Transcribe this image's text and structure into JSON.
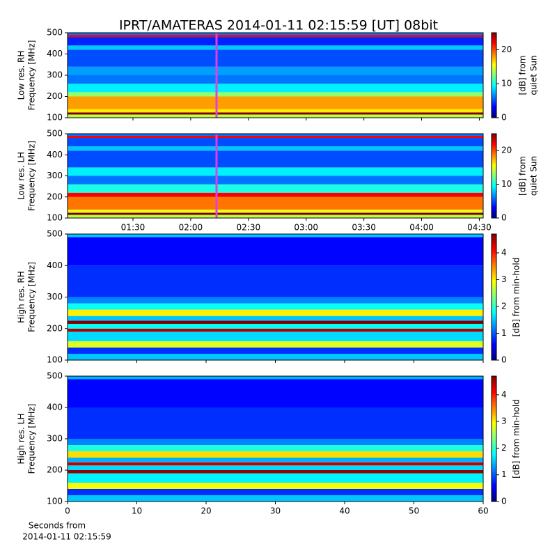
{
  "chart_data": [
    {
      "type": "heatmap",
      "title": "IPRT/AMATERAS 2014-01-11 02:15:59 [UT]   08bit",
      "ylabel": [
        "Low res. RH",
        "Frequency [MHz]"
      ],
      "colorbar_label": [
        "[dB] from",
        "quiet Sun"
      ],
      "ylim": [
        100,
        500
      ],
      "yticks": [
        100,
        200,
        300,
        400,
        500
      ],
      "y_edges": [
        100,
        115,
        125,
        140,
        200,
        220,
        260,
        300,
        340,
        420,
        440,
        480,
        490,
        500
      ],
      "values": [
        14,
        25,
        16,
        18,
        13,
        9,
        6,
        7,
        5,
        8,
        4,
        22,
        6
      ],
      "clim": [
        0,
        25
      ],
      "cticks": [
        0,
        10,
        20
      ]
    },
    {
      "type": "heatmap",
      "ylabel": [
        "Low res. LH",
        "Frequency [MHz]"
      ],
      "colorbar_label": [
        "[dB] from",
        "quiet Sun"
      ],
      "ylim": [
        100,
        500
      ],
      "yticks": [
        100,
        200,
        300,
        400,
        500
      ],
      "xlim": [
        "00:56",
        "04:32"
      ],
      "xticks": [
        "01:30",
        "02:00",
        "02:30",
        "03:00",
        "03:30",
        "04:00",
        "04:30"
      ],
      "y_edges": [
        100,
        115,
        125,
        140,
        200,
        220,
        260,
        300,
        340,
        420,
        440,
        480,
        490,
        500
      ],
      "values": [
        14,
        25,
        15,
        19,
        22,
        10,
        6,
        9,
        5,
        8,
        5,
        22,
        6
      ],
      "clim": [
        0,
        25
      ],
      "cticks": [
        0,
        10,
        20
      ]
    },
    {
      "type": "heatmap",
      "ylabel": [
        "High res. RH",
        "Frequency [MHz]"
      ],
      "colorbar_label": [
        "[dB] from min-hold"
      ],
      "ylim": [
        100,
        500
      ],
      "yticks": [
        100,
        200,
        300,
        400,
        500
      ],
      "y_edges": [
        100,
        120,
        140,
        160,
        190,
        200,
        215,
        225,
        240,
        260,
        280,
        300,
        400,
        490,
        500
      ],
      "values": [
        1.5,
        0.8,
        2.8,
        1.6,
        4.5,
        1.8,
        4.7,
        1.5,
        3,
        1.8,
        1.2,
        0.8,
        0.6,
        1.5
      ],
      "clim": [
        0,
        4.7
      ],
      "cticks": [
        0,
        1,
        2,
        3,
        4
      ]
    },
    {
      "type": "heatmap",
      "ylabel": [
        "High res. LH",
        "Frequency [MHz]"
      ],
      "colorbar_label": [
        "[dB] from min-hold"
      ],
      "xlabel": [
        "Seconds from",
        "2014-01-11 02:15:59"
      ],
      "ylim": [
        100,
        500
      ],
      "yticks": [
        100,
        200,
        300,
        400,
        500
      ],
      "xlim": [
        0,
        60
      ],
      "xticks": [
        0,
        10,
        20,
        30,
        40,
        50,
        60
      ],
      "y_edges": [
        100,
        120,
        140,
        160,
        190,
        200,
        215,
        225,
        240,
        260,
        280,
        300,
        400,
        490,
        500
      ],
      "values": [
        1.5,
        0.8,
        2.9,
        1.7,
        4.6,
        1.6,
        4.4,
        1.4,
        3.1,
        1.9,
        1.2,
        0.8,
        0.6,
        1.4
      ],
      "clim": [
        0,
        4.7
      ],
      "cticks": [
        0,
        1,
        2,
        3,
        4
      ]
    }
  ]
}
